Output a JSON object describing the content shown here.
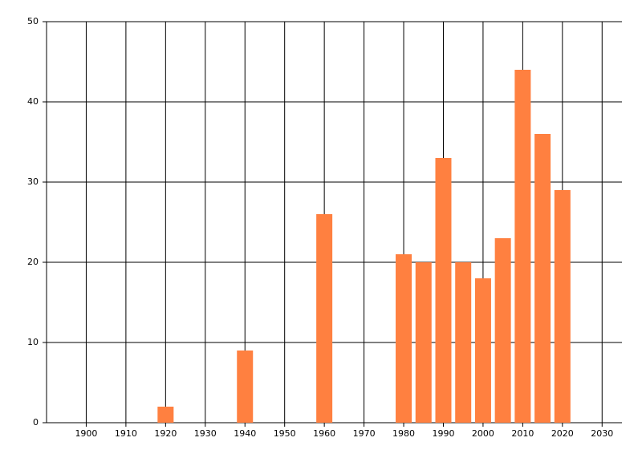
{
  "chart_data": {
    "type": "bar",
    "x": [
      1920,
      1940,
      1960,
      1980,
      1985,
      1990,
      1995,
      2000,
      2005,
      2010,
      2015,
      2020
    ],
    "values": [
      2,
      9,
      26,
      21,
      20,
      33,
      20,
      18,
      23,
      44,
      36,
      29
    ],
    "color": "#ff8040",
    "xlim": [
      1890,
      2035
    ],
    "xticks": [
      1900,
      1910,
      1920,
      1930,
      1940,
      1950,
      1960,
      1970,
      1980,
      1990,
      2000,
      2010,
      2020,
      2030
    ],
    "ylim": [
      0,
      50
    ],
    "yticks": [
      0,
      10,
      20,
      30,
      40,
      50
    ],
    "grid": true
  }
}
